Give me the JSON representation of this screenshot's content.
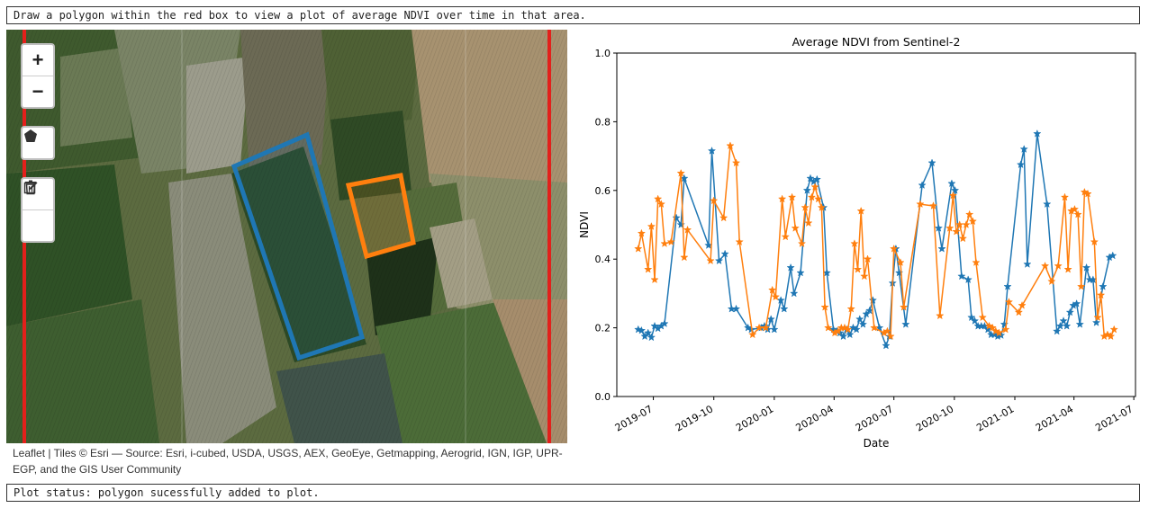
{
  "top_message": "Draw a polygon within the red box to view a plot of average NDVI over time in that area.",
  "status_message": "Plot status: polygon sucessfully added to plot.",
  "map": {
    "zoom_in_label": "+",
    "zoom_out_label": "−",
    "attribution": "Leaflet | Tiles © Esri — Source: Esri, i-cubed, USDA, USGS, AEX, GeoEye, Getmapping, Aerogrid, IGN, IGP, UPR-EGP, and the GIS User Community",
    "boundary_color": "#e3201b",
    "polygon_colors": [
      "#1f77b4",
      "#ff7f0e"
    ],
    "icons": [
      "polygon-icon",
      "edit-icon",
      "trash-icon"
    ]
  },
  "chart_data": {
    "type": "line",
    "title": "Average NDVI from Sentinel-2",
    "xlabel": "Date",
    "ylabel": "NDVI",
    "ylim": [
      0.0,
      1.0
    ],
    "yticks": [
      "0.0",
      "0.2",
      "0.4",
      "0.6",
      "0.8",
      "1.0"
    ],
    "xticks": [
      "2019-07",
      "2019-10",
      "2020-01",
      "2020-04",
      "2020-07",
      "2020-10",
      "2021-01",
      "2021-04",
      "2021-07"
    ],
    "grid": false,
    "marker": "star",
    "series": [
      {
        "color": "#1f77b4",
        "points": [
          [
            "2019-06-08",
            0.195
          ],
          [
            "2019-06-13",
            0.192
          ],
          [
            "2019-06-18",
            0.175
          ],
          [
            "2019-06-23",
            0.185
          ],
          [
            "2019-06-28",
            0.172
          ],
          [
            "2019-07-03",
            0.205
          ],
          [
            "2019-07-08",
            0.198
          ],
          [
            "2019-07-13",
            0.205
          ],
          [
            "2019-07-18",
            0.212
          ],
          [
            "2019-08-05",
            0.52
          ],
          [
            "2019-08-12",
            0.5
          ],
          [
            "2019-08-17",
            0.635
          ],
          [
            "2019-09-23",
            0.44
          ],
          [
            "2019-09-28",
            0.715
          ],
          [
            "2019-10-09",
            0.395
          ],
          [
            "2019-10-18",
            0.415
          ],
          [
            "2019-10-28",
            0.255
          ],
          [
            "2019-11-04",
            0.255
          ],
          [
            "2019-11-22",
            0.2
          ],
          [
            "2019-11-27",
            0.195
          ],
          [
            "2019-12-12",
            0.2
          ],
          [
            "2019-12-17",
            0.205
          ],
          [
            "2019-12-22",
            0.195
          ],
          [
            "2019-12-27",
            0.225
          ],
          [
            "2020-01-01",
            0.195
          ],
          [
            "2020-01-11",
            0.28
          ],
          [
            "2020-01-16",
            0.255
          ],
          [
            "2020-01-26",
            0.375
          ],
          [
            "2020-01-31",
            0.3
          ],
          [
            "2020-02-10",
            0.36
          ],
          [
            "2020-02-20",
            0.6
          ],
          [
            "2020-02-25",
            0.635
          ],
          [
            "2020-03-01",
            0.625
          ],
          [
            "2020-03-06",
            0.632
          ],
          [
            "2020-03-16",
            0.55
          ],
          [
            "2020-03-21",
            0.36
          ],
          [
            "2020-03-31",
            0.195
          ],
          [
            "2020-04-05",
            0.19
          ],
          [
            "2020-04-10",
            0.185
          ],
          [
            "2020-04-15",
            0.175
          ],
          [
            "2020-04-20",
            0.195
          ],
          [
            "2020-04-25",
            0.18
          ],
          [
            "2020-04-30",
            0.2
          ],
          [
            "2020-05-05",
            0.195
          ],
          [
            "2020-05-10",
            0.225
          ],
          [
            "2020-05-15",
            0.21
          ],
          [
            "2020-05-20",
            0.24
          ],
          [
            "2020-05-25",
            0.25
          ],
          [
            "2020-05-30",
            0.28
          ],
          [
            "2020-06-09",
            0.2
          ],
          [
            "2020-06-19",
            0.148
          ],
          [
            "2020-06-24",
            0.175
          ],
          [
            "2020-06-29",
            0.33
          ],
          [
            "2020-07-04",
            0.43
          ],
          [
            "2020-07-09",
            0.36
          ],
          [
            "2020-07-19",
            0.21
          ],
          [
            "2020-08-13",
            0.615
          ],
          [
            "2020-08-28",
            0.68
          ],
          [
            "2020-09-07",
            0.49
          ],
          [
            "2020-09-12",
            0.43
          ],
          [
            "2020-09-27",
            0.62
          ],
          [
            "2020-10-02",
            0.6
          ],
          [
            "2020-10-12",
            0.35
          ],
          [
            "2020-10-22",
            0.34
          ],
          [
            "2020-10-27",
            0.23
          ],
          [
            "2020-11-01",
            0.22
          ],
          [
            "2020-11-06",
            0.205
          ],
          [
            "2020-11-11",
            0.205
          ],
          [
            "2020-11-16",
            0.205
          ],
          [
            "2020-11-21",
            0.195
          ],
          [
            "2020-11-26",
            0.18
          ],
          [
            "2020-12-01",
            0.18
          ],
          [
            "2020-12-06",
            0.175
          ],
          [
            "2020-12-11",
            0.178
          ],
          [
            "2020-12-16",
            0.21
          ],
          [
            "2020-12-21",
            0.32
          ],
          [
            "2021-01-10",
            0.675
          ],
          [
            "2021-01-15",
            0.72
          ],
          [
            "2021-01-20",
            0.385
          ],
          [
            "2021-02-04",
            0.765
          ],
          [
            "2021-02-19",
            0.56
          ],
          [
            "2021-03-06",
            0.19
          ],
          [
            "2021-03-11",
            0.205
          ],
          [
            "2021-03-16",
            0.22
          ],
          [
            "2021-03-21",
            0.205
          ],
          [
            "2021-03-26",
            0.245
          ],
          [
            "2021-03-31",
            0.265
          ],
          [
            "2021-04-05",
            0.27
          ],
          [
            "2021-04-10",
            0.21
          ],
          [
            "2021-04-20",
            0.375
          ],
          [
            "2021-04-25",
            0.34
          ],
          [
            "2021-04-30",
            0.34
          ],
          [
            "2021-05-05",
            0.215
          ],
          [
            "2021-05-15",
            0.32
          ],
          [
            "2021-05-25",
            0.405
          ],
          [
            "2021-05-30",
            0.41
          ]
        ]
      },
      {
        "color": "#ff7f0e",
        "points": [
          [
            "2019-06-08",
            0.43
          ],
          [
            "2019-06-13",
            0.475
          ],
          [
            "2019-06-23",
            0.37
          ],
          [
            "2019-06-28",
            0.495
          ],
          [
            "2019-07-03",
            0.34
          ],
          [
            "2019-07-08",
            0.575
          ],
          [
            "2019-07-13",
            0.56
          ],
          [
            "2019-07-18",
            0.445
          ],
          [
            "2019-07-28",
            0.45
          ],
          [
            "2019-08-12",
            0.65
          ],
          [
            "2019-08-17",
            0.405
          ],
          [
            "2019-08-22",
            0.485
          ],
          [
            "2019-09-26",
            0.395
          ],
          [
            "2019-10-01",
            0.57
          ],
          [
            "2019-10-16",
            0.52
          ],
          [
            "2019-10-26",
            0.73
          ],
          [
            "2019-11-04",
            0.68
          ],
          [
            "2019-11-09",
            0.45
          ],
          [
            "2019-11-29",
            0.18
          ],
          [
            "2019-12-09",
            0.2
          ],
          [
            "2019-12-19",
            0.2
          ],
          [
            "2019-12-29",
            0.31
          ],
          [
            "2020-01-03",
            0.29
          ],
          [
            "2020-01-13",
            0.575
          ],
          [
            "2020-01-18",
            0.465
          ],
          [
            "2020-01-28",
            0.58
          ],
          [
            "2020-02-02",
            0.49
          ],
          [
            "2020-02-12",
            0.445
          ],
          [
            "2020-02-17",
            0.55
          ],
          [
            "2020-02-22",
            0.505
          ],
          [
            "2020-02-27",
            0.58
          ],
          [
            "2020-03-03",
            0.61
          ],
          [
            "2020-03-08",
            0.575
          ],
          [
            "2020-03-13",
            0.55
          ],
          [
            "2020-03-18",
            0.26
          ],
          [
            "2020-03-23",
            0.2
          ],
          [
            "2020-04-02",
            0.185
          ],
          [
            "2020-04-07",
            0.19
          ],
          [
            "2020-04-12",
            0.2
          ],
          [
            "2020-04-17",
            0.2
          ],
          [
            "2020-04-22",
            0.195
          ],
          [
            "2020-04-27",
            0.255
          ],
          [
            "2020-05-02",
            0.445
          ],
          [
            "2020-05-07",
            0.37
          ],
          [
            "2020-05-12",
            0.54
          ],
          [
            "2020-05-17",
            0.35
          ],
          [
            "2020-05-22",
            0.4
          ],
          [
            "2020-06-01",
            0.2
          ],
          [
            "2020-06-16",
            0.185
          ],
          [
            "2020-06-21",
            0.19
          ],
          [
            "2020-06-26",
            0.175
          ],
          [
            "2020-07-01",
            0.43
          ],
          [
            "2020-07-11",
            0.39
          ],
          [
            "2020-07-16",
            0.26
          ],
          [
            "2020-08-10",
            0.56
          ],
          [
            "2020-08-30",
            0.555
          ],
          [
            "2020-09-09",
            0.235
          ],
          [
            "2020-09-24",
            0.49
          ],
          [
            "2020-09-29",
            0.585
          ],
          [
            "2020-10-04",
            0.48
          ],
          [
            "2020-10-09",
            0.5
          ],
          [
            "2020-10-14",
            0.46
          ],
          [
            "2020-10-19",
            0.5
          ],
          [
            "2020-10-24",
            0.53
          ],
          [
            "2020-10-29",
            0.51
          ],
          [
            "2020-11-03",
            0.39
          ],
          [
            "2020-11-13",
            0.23
          ],
          [
            "2020-11-23",
            0.205
          ],
          [
            "2020-11-28",
            0.2
          ],
          [
            "2020-12-03",
            0.19
          ],
          [
            "2020-12-08",
            0.185
          ],
          [
            "2020-12-18",
            0.195
          ],
          [
            "2020-12-23",
            0.275
          ],
          [
            "2021-01-07",
            0.245
          ],
          [
            "2021-01-12",
            0.265
          ],
          [
            "2021-02-16",
            0.38
          ],
          [
            "2021-02-26",
            0.335
          ],
          [
            "2021-03-08",
            0.38
          ],
          [
            "2021-03-18",
            0.58
          ],
          [
            "2021-03-23",
            0.37
          ],
          [
            "2021-03-28",
            0.54
          ],
          [
            "2021-04-02",
            0.545
          ],
          [
            "2021-04-07",
            0.53
          ],
          [
            "2021-04-12",
            0.32
          ],
          [
            "2021-04-17",
            0.595
          ],
          [
            "2021-04-22",
            0.59
          ],
          [
            "2021-05-02",
            0.45
          ],
          [
            "2021-05-07",
            0.23
          ],
          [
            "2021-05-12",
            0.295
          ],
          [
            "2021-05-17",
            0.175
          ],
          [
            "2021-05-22",
            0.18
          ],
          [
            "2021-05-27",
            0.175
          ],
          [
            "2021-06-01",
            0.195
          ]
        ]
      }
    ]
  }
}
